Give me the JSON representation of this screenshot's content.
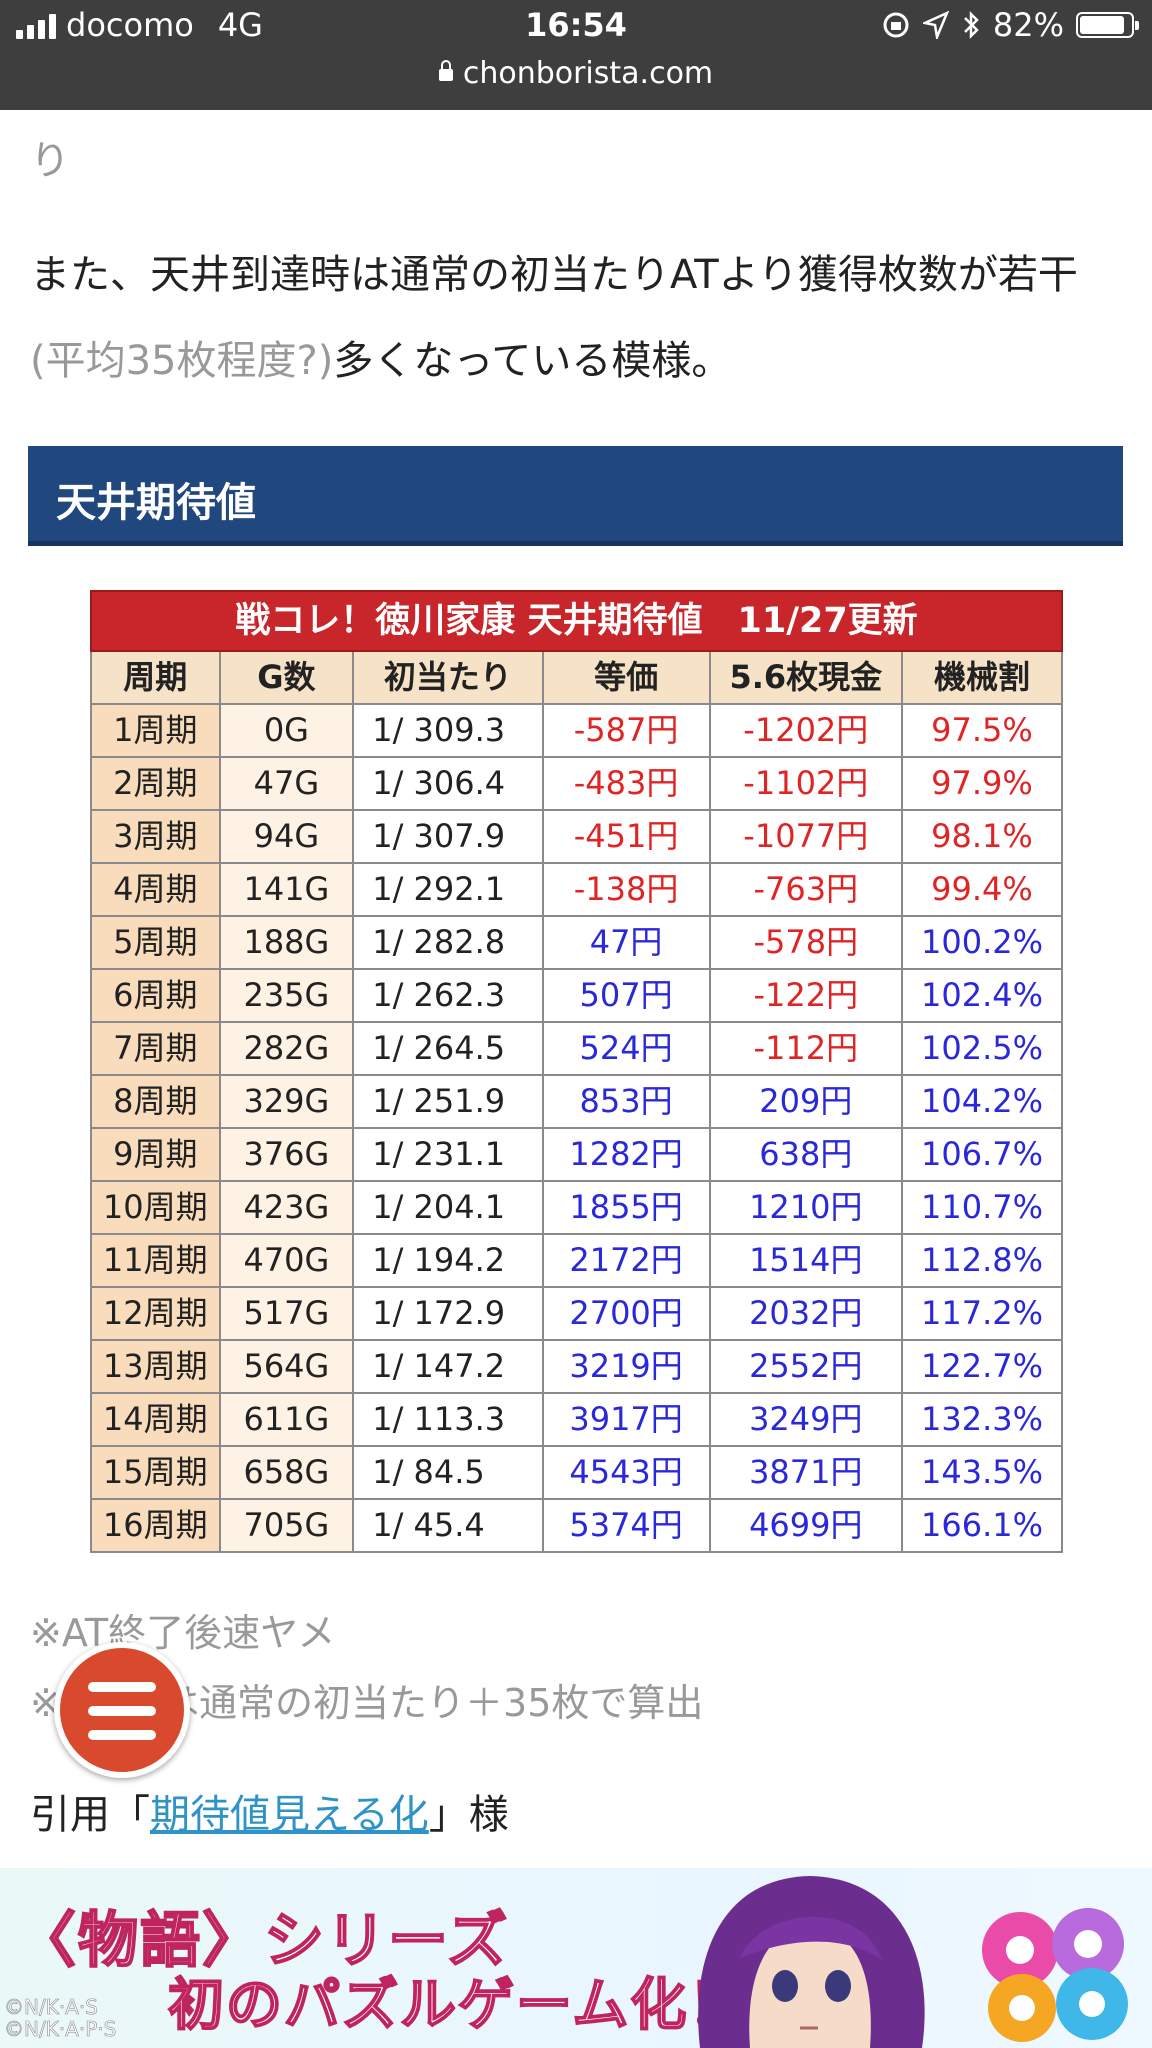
{
  "status": {
    "carrier": "docomo",
    "network": "4G",
    "time": "16:54",
    "battery": "82%",
    "url": "chonborista.com"
  },
  "article": {
    "fragment": "り",
    "para_part1": "また、天井到達時は通常の初当たりATより獲得枚数が若干",
    "para_note": "(平均35枚程度?)",
    "para_part2": "多くなっている模様。",
    "section_heading": "天井期待値"
  },
  "table": {
    "caption": "戦コレ！徳川家康 天井期待値　11/27更新",
    "headers": [
      "周期",
      "G数",
      "初当たり",
      "等価",
      "5.6枚現金",
      "機械割"
    ],
    "rows": [
      [
        "1周期",
        "0G",
        "1/ 309.3",
        "-587円",
        "-1202円",
        "97.5%"
      ],
      [
        "2周期",
        "47G",
        "1/ 306.4",
        "-483円",
        "-1102円",
        "97.9%"
      ],
      [
        "3周期",
        "94G",
        "1/ 307.9",
        "-451円",
        "-1077円",
        "98.1%"
      ],
      [
        "4周期",
        "141G",
        "1/ 292.1",
        "-138円",
        "-763円",
        "99.4%"
      ],
      [
        "5周期",
        "188G",
        "1/ 282.8",
        "47円",
        "-578円",
        "100.2%"
      ],
      [
        "6周期",
        "235G",
        "1/ 262.3",
        "507円",
        "-122円",
        "102.4%"
      ],
      [
        "7周期",
        "282G",
        "1/ 264.5",
        "524円",
        "-112円",
        "102.5%"
      ],
      [
        "8周期",
        "329G",
        "1/ 251.9",
        "853円",
        "209円",
        "104.2%"
      ],
      [
        "9周期",
        "376G",
        "1/ 231.1",
        "1282円",
        "638円",
        "106.7%"
      ],
      [
        "10周期",
        "423G",
        "1/ 204.1",
        "1855円",
        "1210円",
        "110.7%"
      ],
      [
        "11周期",
        "470G",
        "1/ 194.2",
        "2172円",
        "1514円",
        "112.8%"
      ],
      [
        "12周期",
        "517G",
        "1/ 172.9",
        "2700円",
        "2032円",
        "117.2%"
      ],
      [
        "13周期",
        "564G",
        "1/ 147.2",
        "3219円",
        "2552円",
        "122.7%"
      ],
      [
        "14周期",
        "611G",
        "1/ 113.3",
        "3917円",
        "3249円",
        "132.3%"
      ],
      [
        "15周期",
        "658G",
        "1/ 84.5",
        "4543円",
        "3871円",
        "143.5%"
      ],
      [
        "16周期",
        "705G",
        "1/ 45.4",
        "5374円",
        "4699円",
        "166.1%"
      ]
    ],
    "colors": {
      "negative": "#e02424",
      "positive": "#2a28d8",
      "caption_bg": "#c8262b"
    }
  },
  "footnotes": {
    "note1": "※AT終了後速ヤメ",
    "note2": "※　　Tは通常の初当たり＋35枚で算出",
    "quote_prefix": "引用「",
    "quote_link": "期待値見える化",
    "quote_suffix": "」様"
  },
  "menu_button": {
    "icon": "hamburger-menu-icon",
    "color": "#d9492d"
  },
  "banner": {
    "line1": "〈物語〉シリーズ",
    "line2": "初のパズルゲーム化！",
    "copyright1": "©N/K·A·S",
    "copyright2": "©N/K·A·P·S"
  }
}
